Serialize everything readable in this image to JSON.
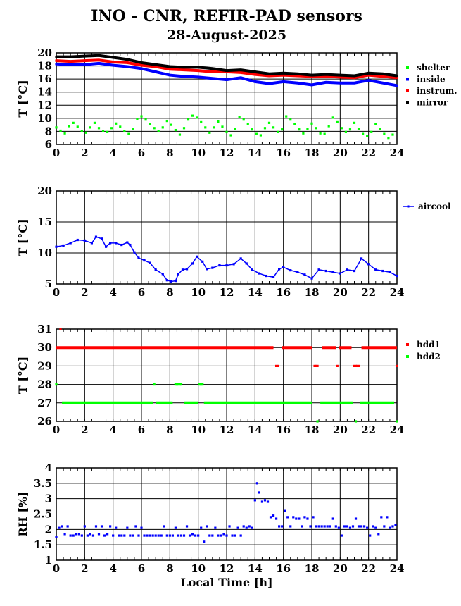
{
  "title": "INO - CNR, REFIR-PAD sensors",
  "subtitle": "28-August-2025",
  "chart_data": [
    {
      "type": "line",
      "id": "temp",
      "ylabel": "T [°C]",
      "xlim": [
        0,
        24
      ],
      "ylim": [
        6,
        20
      ],
      "xticks": [
        "0",
        "2",
        "4",
        "6",
        "8",
        "10",
        "12",
        "14",
        "16",
        "18",
        "20",
        "22",
        "24"
      ],
      "yticks": [
        "6",
        "8",
        "10",
        "12",
        "14",
        "16",
        "18",
        "20"
      ],
      "grid": true,
      "legend": "right",
      "series": [
        {
          "name": "shelter",
          "color": "#00ff00",
          "x": [
            0,
            0.3,
            0.6,
            0.9,
            1.2,
            1.5,
            1.8,
            2.1,
            2.4,
            2.7,
            3,
            3.3,
            3.6,
            3.9,
            4.2,
            4.5,
            4.8,
            5.1,
            5.4,
            5.7,
            6,
            6.3,
            6.6,
            6.9,
            7.2,
            7.5,
            7.8,
            8.1,
            8.4,
            8.7,
            9,
            9.3,
            9.6,
            9.9,
            10.2,
            10.5,
            10.8,
            11.1,
            11.4,
            11.7,
            12,
            12.3,
            12.6,
            12.9,
            13.2,
            13.5,
            13.8,
            14.1,
            14.4,
            14.7,
            15,
            15.3,
            15.6,
            15.9,
            16.2,
            16.5,
            16.8,
            17.1,
            17.4,
            17.7,
            18,
            18.3,
            18.6,
            18.9,
            19.2,
            19.5,
            19.8,
            20.1,
            20.4,
            20.7,
            21,
            21.3,
            21.6,
            21.9,
            22.2,
            22.5,
            22.8,
            23.1,
            23.4,
            23.7
          ],
          "y": [
            8.6,
            8.1,
            7.7,
            8.8,
            9.3,
            8.7,
            8,
            7.8,
            8.6,
            9.3,
            8.5,
            8,
            7.9,
            8.5,
            9.2,
            8.7,
            8,
            7.6,
            8.4,
            9.9,
            10.3,
            9.8,
            9.1,
            8.5,
            8,
            8.6,
            9.6,
            9,
            8.2,
            7.5,
            8.5,
            9.8,
            10.4,
            10.1,
            9.4,
            8.6,
            7.8,
            8.6,
            9.5,
            8.7,
            7.9,
            7.4,
            8.4,
            10.2,
            9.8,
            9.1,
            8.3,
            7.6,
            7.4,
            8.5,
            9.3,
            8.6,
            7.9,
            8.3,
            10.3,
            9.8,
            9.1,
            8.3,
            7.7,
            8.4,
            9.2,
            8.5,
            7.7,
            7.6,
            8.8,
            10.1,
            9.4,
            8.5,
            7.9,
            8.3,
            9.3,
            8.4,
            7.6,
            7.3,
            7.9,
            9.1,
            8.4,
            7.6,
            7,
            7.5
          ]
        },
        {
          "name": "inside",
          "color": "#0000ff",
          "x": [
            0,
            1,
            2,
            3,
            4,
            5,
            6,
            7,
            8,
            9,
            10,
            11,
            12,
            13,
            14,
            15,
            16,
            17,
            18,
            19,
            20,
            21,
            22,
            23,
            24
          ],
          "y": [
            18.3,
            18.2,
            18.2,
            18.4,
            18.1,
            17.9,
            17.6,
            17.1,
            16.6,
            16.4,
            16.3,
            16.1,
            15.9,
            16.2,
            15.6,
            15.3,
            15.6,
            15.4,
            15.1,
            15.5,
            15.4,
            15.4,
            15.8,
            15.4,
            15
          ]
        },
        {
          "name": "instrum.",
          "color": "#ff0000",
          "x": [
            0,
            1,
            2,
            3,
            4,
            5,
            6,
            7,
            8,
            9,
            10,
            11,
            12,
            13,
            14,
            15,
            16,
            17,
            18,
            19,
            20,
            21,
            22,
            23,
            24
          ],
          "y": [
            18.8,
            18.7,
            18.8,
            18.9,
            18.6,
            18.5,
            18.1,
            17.9,
            17.5,
            17.4,
            17.3,
            17.1,
            17.1,
            17,
            16.7,
            16.5,
            16.6,
            16.5,
            16.4,
            16.4,
            16.3,
            16.2,
            16.6,
            16.4,
            16.2
          ]
        },
        {
          "name": "mirror",
          "color": "#000000",
          "x": [
            0,
            1,
            2,
            3,
            4,
            5,
            6,
            7,
            8,
            9,
            10,
            11,
            12,
            13,
            14,
            15,
            16,
            17,
            18,
            19,
            20,
            21,
            22,
            23,
            24
          ],
          "y": [
            19.4,
            19.4,
            19.5,
            19.6,
            19.3,
            19,
            18.5,
            18.2,
            17.9,
            17.8,
            17.8,
            17.6,
            17.3,
            17.4,
            17.1,
            16.8,
            16.9,
            16.8,
            16.6,
            16.7,
            16.6,
            16.5,
            16.9,
            16.8,
            16.5
          ]
        }
      ]
    },
    {
      "type": "line",
      "id": "aircool",
      "ylabel": "T [°C]",
      "xlim": [
        0,
        24
      ],
      "ylim": [
        5,
        20
      ],
      "xticks": [
        "0",
        "2",
        "4",
        "6",
        "8",
        "10",
        "12",
        "14",
        "16",
        "18",
        "20",
        "22",
        "24"
      ],
      "yticks": [
        "5",
        "10",
        "15",
        "20"
      ],
      "grid": true,
      "legend": "right",
      "series": [
        {
          "name": "aircool",
          "color": "#0000ff",
          "x": [
            0,
            0.5,
            1,
            1.5,
            2,
            2.5,
            2.8,
            3.2,
            3.5,
            3.8,
            4.2,
            4.6,
            5,
            5.2,
            5.5,
            5.8,
            6.2,
            6.6,
            7,
            7.5,
            7.8,
            8.1,
            8.4,
            8.6,
            8.9,
            9.2,
            9.6,
            9.9,
            10.3,
            10.6,
            11,
            11.5,
            12,
            12.5,
            13,
            13.4,
            13.8,
            14.3,
            14.8,
            15.3,
            15.7,
            16,
            16.5,
            17,
            17.5,
            18,
            18.5,
            19,
            19.5,
            20,
            20.5,
            21,
            21.5,
            22,
            22.5,
            23,
            23.5,
            24
          ],
          "y": [
            11,
            11.2,
            11.6,
            12.1,
            12,
            11.6,
            12.6,
            12.3,
            11,
            11.6,
            11.6,
            11.3,
            11.7,
            11.3,
            10.1,
            9.2,
            8.8,
            8.4,
            7.3,
            6.6,
            5.6,
            5.4,
            5.5,
            6.6,
            7.3,
            7.4,
            8.3,
            9.4,
            8.6,
            7.4,
            7.6,
            8,
            8,
            8.2,
            9.1,
            8.3,
            7.3,
            6.7,
            6.3,
            6.1,
            7.4,
            7.7,
            7.2,
            6.9,
            6.5,
            5.9,
            7.3,
            7.1,
            6.9,
            6.7,
            7.3,
            7.1,
            9.1,
            8.2,
            7.3,
            7.1,
            6.9,
            6.3
          ]
        }
      ]
    },
    {
      "type": "scatter",
      "id": "hdd",
      "ylabel": "T [°C]",
      "xlim": [
        0,
        24
      ],
      "ylim": [
        26,
        31
      ],
      "xticks": [
        "0",
        "2",
        "4",
        "6",
        "8",
        "10",
        "12",
        "14",
        "16",
        "18",
        "20",
        "22",
        "24"
      ],
      "yticks": [
        "26",
        "27",
        "28",
        "29",
        "30",
        "31"
      ],
      "grid": true,
      "legend": "right",
      "series": [
        {
          "name": "hdd1",
          "color": "#ff0000",
          "x": [
            0.3,
            15.5,
            15.6,
            18.2,
            18.3,
            18.4,
            19.8,
            21,
            21.1,
            21.2,
            21.3,
            24
          ],
          "y": [
            31,
            29,
            29,
            29,
            29,
            29,
            29,
            29,
            29,
            29,
            29,
            29
          ],
          "segments": [
            [
              0,
              30,
              15.3
            ],
            [
              15.9,
              30,
              18
            ],
            [
              18.7,
              30,
              19.7
            ],
            [
              19.9,
              30,
              20.8
            ],
            [
              21.5,
              30,
              24
            ]
          ]
        },
        {
          "name": "hdd2",
          "color": "#00ff00",
          "x": [
            0,
            6.9,
            8.4,
            8.5,
            8.6,
            8.7,
            8.8,
            10.1,
            10.2,
            10.3,
            18.4,
            21.1,
            24
          ],
          "y": [
            28,
            28,
            28,
            28,
            28,
            28,
            28,
            28,
            28,
            28,
            26,
            26,
            26
          ],
          "segments": [
            [
              0.4,
              27,
              6.8
            ],
            [
              7,
              27,
              8.2
            ],
            [
              9,
              27,
              10
            ],
            [
              10.4,
              27,
              18
            ],
            [
              18.6,
              27,
              20.9
            ],
            [
              21.4,
              27,
              23.8
            ]
          ]
        }
      ]
    },
    {
      "type": "scatter",
      "id": "rh",
      "ylabel": "RH [%]",
      "xlabel": "Local Time [h]",
      "xlim": [
        0,
        24
      ],
      "ylim": [
        1,
        4
      ],
      "xticks": [
        "0",
        "2",
        "4",
        "6",
        "8",
        "10",
        "12",
        "14",
        "16",
        "18",
        "20",
        "22",
        "24"
      ],
      "yticks": [
        "1",
        "1.5",
        "2",
        "2.5",
        "3",
        "3.5",
        "4"
      ],
      "grid": true,
      "series": [
        {
          "name": "RH",
          "color": "#0000ff",
          "x": [
            0,
            0.2,
            0.4,
            0.6,
            0.8,
            1,
            1.2,
            1.4,
            1.6,
            1.8,
            2,
            2.2,
            2.4,
            2.6,
            2.8,
            3,
            3.2,
            3.4,
            3.6,
            3.8,
            4,
            4.2,
            4.4,
            4.6,
            4.8,
            5,
            5.2,
            5.4,
            5.6,
            5.8,
            6,
            6.2,
            6.4,
            6.6,
            6.8,
            7,
            7.2,
            7.4,
            7.6,
            7.8,
            8,
            8.2,
            8.4,
            8.6,
            8.8,
            9,
            9.2,
            9.4,
            9.6,
            9.8,
            10,
            10.2,
            10.4,
            10.6,
            10.8,
            11,
            11.2,
            11.4,
            11.6,
            11.8,
            12,
            12.2,
            12.4,
            12.6,
            12.8,
            13,
            13.2,
            13.4,
            13.6,
            13.8,
            14,
            14.15,
            14.3,
            14.5,
            14.7,
            14.9,
            15.1,
            15.3,
            15.5,
            15.7,
            15.9,
            16.1,
            16.3,
            16.5,
            16.7,
            16.9,
            17.1,
            17.3,
            17.5,
            17.7,
            17.9,
            18.1,
            18.3,
            18.5,
            18.7,
            18.9,
            19.1,
            19.3,
            19.5,
            19.7,
            19.9,
            20.1,
            20.3,
            20.5,
            20.7,
            20.9,
            21.1,
            21.3,
            21.5,
            21.7,
            21.9,
            22.1,
            22.3,
            22.5,
            22.7,
            22.9,
            23.1,
            23.3,
            23.5,
            23.7,
            23.9
          ],
          "y": [
            1.75,
            2.05,
            2.1,
            1.85,
            2.1,
            1.8,
            1.8,
            1.85,
            1.85,
            1.8,
            2.1,
            1.8,
            1.85,
            1.8,
            2.1,
            1.85,
            2.1,
            1.8,
            1.85,
            2.1,
            1.8,
            2.05,
            1.8,
            1.8,
            1.8,
            2.05,
            1.8,
            1.8,
            2.1,
            1.8,
            2.05,
            1.8,
            1.8,
            1.8,
            1.8,
            1.8,
            1.8,
            1.8,
            2.1,
            1.8,
            1.8,
            1.8,
            2.05,
            1.8,
            1.8,
            1.8,
            2.1,
            1.8,
            1.85,
            1.8,
            1.8,
            2.05,
            1.6,
            2.1,
            1.8,
            1.8,
            2.05,
            1.8,
            1.8,
            1.85,
            1.8,
            2.1,
            1.8,
            1.8,
            2.05,
            1.8,
            2.1,
            2.05,
            2.1,
            2.05,
            2.95,
            3.5,
            3.2,
            2.9,
            2.95,
            2.9,
            2.4,
            2.45,
            2.35,
            2.1,
            2.1,
            2.6,
            2.4,
            2.1,
            2.4,
            2.35,
            2.35,
            2.1,
            2.4,
            2.35,
            2.1,
            2.4,
            2.1,
            2.1,
            2.1,
            2.1,
            2.1,
            2.1,
            2.35,
            2.1,
            2.05,
            1.8,
            2.1,
            2.1,
            2.05,
            2.1,
            2.35,
            2.1,
            2.1,
            2.1,
            2.05,
            1.8,
            2.1,
            2.05,
            1.85,
            2.4,
            2.1,
            2.4,
            2.05,
            2.1,
            2.15
          ]
        }
      ]
    }
  ]
}
